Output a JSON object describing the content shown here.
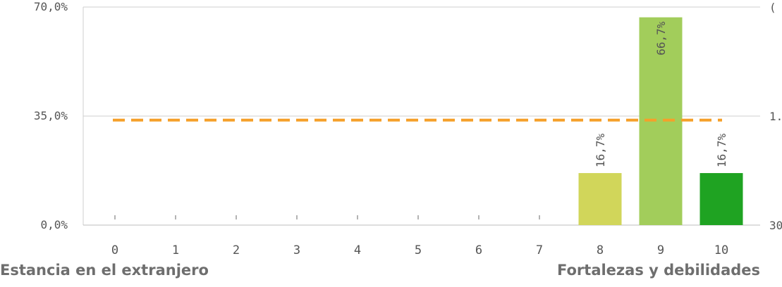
{
  "chart_data": {
    "type": "bar",
    "categories": [
      "0",
      "1",
      "2",
      "3",
      "4",
      "5",
      "6",
      "7",
      "8",
      "9",
      "10"
    ],
    "values": [
      0,
      0,
      0,
      0,
      0,
      0,
      0,
      0,
      16.7,
      66.7,
      16.7
    ],
    "value_labels": [
      "",
      "",
      "",
      "",
      "",
      "",
      "",
      "",
      "16,7%",
      "66,7%",
      "16,7%"
    ],
    "bar_colors": [
      "#d1d65a",
      "#d1d65a",
      "#d1d65a",
      "#d1d65a",
      "#d1d65a",
      "#d1d65a",
      "#d1d65a",
      "#d1d65a",
      "#d1d65a",
      "#a2cd5b",
      "#1fa322"
    ],
    "ylim": [
      0,
      70
    ],
    "y_ticks": [
      0,
      35,
      70
    ],
    "y_tick_labels": [
      "0,0%",
      "35,0%",
      "70,0%"
    ],
    "right_tick_labels": [
      "30",
      "1.",
      "("
    ],
    "reference_line": {
      "value": 33.7,
      "color": "#f5a02a",
      "style": "dashed"
    },
    "grid": "horizontal",
    "legend": "none"
  },
  "captions": {
    "left": "Estancia en el extranjero",
    "right": "Fortalezas y debilidades"
  }
}
